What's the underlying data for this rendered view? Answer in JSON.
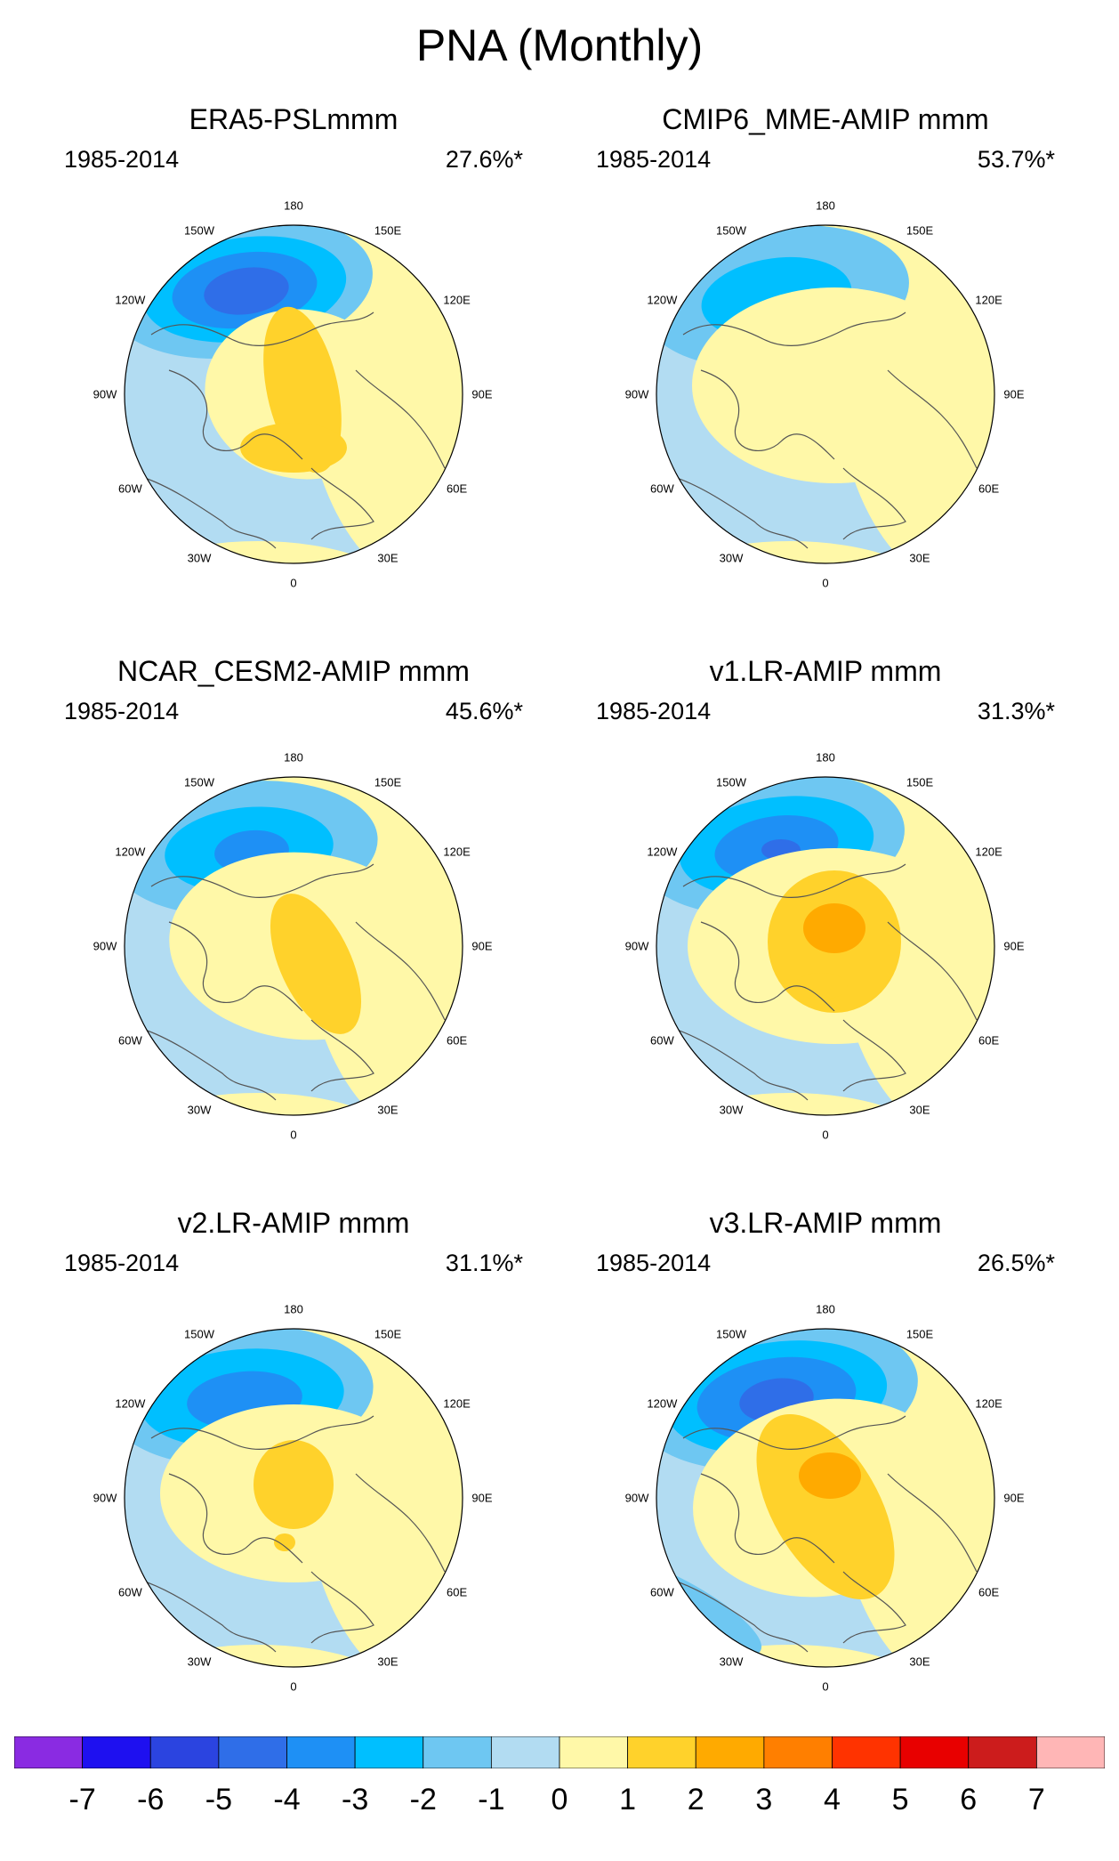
{
  "title": "PNA (Monthly)",
  "panels": [
    {
      "title": "ERA5-PSLmmm",
      "period": "1985-2014",
      "variance": "27.6%*"
    },
    {
      "title": "CMIP6_MME-AMIP  mmm",
      "period": "1985-2014",
      "variance": "53.7%*"
    },
    {
      "title": "NCAR_CESM2-AMIP  mmm",
      "period": "1985-2014",
      "variance": "45.6%*"
    },
    {
      "title": "v1.LR-AMIP  mmm",
      "period": "1985-2014",
      "variance": "31.3%*"
    },
    {
      "title": "v2.LR-AMIP  mmm",
      "period": "1985-2014",
      "variance": "31.1%*"
    },
    {
      "title": "v3.LR-AMIP  mmm",
      "period": "1985-2014",
      "variance": "26.5%*"
    }
  ],
  "longitude_labels": [
    "180",
    "150E",
    "120E",
    "90E",
    "60E",
    "30E",
    "0",
    "30W",
    "60W",
    "90W",
    "120W",
    "150W"
  ],
  "colorbar": {
    "labels": [
      "-7",
      "-6",
      "-5",
      "-4",
      "-3",
      "-2",
      "-1",
      "0",
      "1",
      "2",
      "3",
      "4",
      "5",
      "6",
      "7"
    ],
    "colors": [
      "#8a2be2",
      "#1e10f0",
      "#2b44e0",
      "#2f6ee8",
      "#1e90f5",
      "#00bfff",
      "#6ec7f2",
      "#b2dcf2",
      "#fff8a8",
      "#ffd22b",
      "#ffaa00",
      "#ff7f00",
      "#ff3300",
      "#e80000",
      "#cc1c1c",
      "#ffb6b6"
    ]
  },
  "chart_data": {
    "type": "heatmap",
    "projection": "north polar stereographic",
    "variable": "PNA pattern regression",
    "panel_count": 6,
    "color_levels": [
      -7,
      -6,
      -5,
      -4,
      -3,
      -2,
      -1,
      0,
      1,
      2,
      3,
      4,
      5,
      6,
      7
    ],
    "panels": [
      {
        "name": "ERA5-PSLmmm",
        "explained_variance": "27.6%*",
        "negative_min": -5,
        "positive_max": 2
      },
      {
        "name": "CMIP6_MME-AMIP  mmm",
        "explained_variance": "53.7%*",
        "negative_min": -3,
        "positive_max": 1
      },
      {
        "name": "NCAR_CESM2-AMIP  mmm",
        "explained_variance": "45.6%*",
        "negative_min": -4,
        "positive_max": 2
      },
      {
        "name": "v1.LR-AMIP  mmm",
        "explained_variance": "31.3%*",
        "negative_min": -4,
        "positive_max": 3
      },
      {
        "name": "v2.LR-AMIP  mmm",
        "explained_variance": "31.1%*",
        "negative_min": -4,
        "positive_max": 2
      },
      {
        "name": "v3.LR-AMIP  mmm",
        "explained_variance": "26.5%*",
        "negative_min": -5,
        "positive_max": 3
      }
    ]
  }
}
